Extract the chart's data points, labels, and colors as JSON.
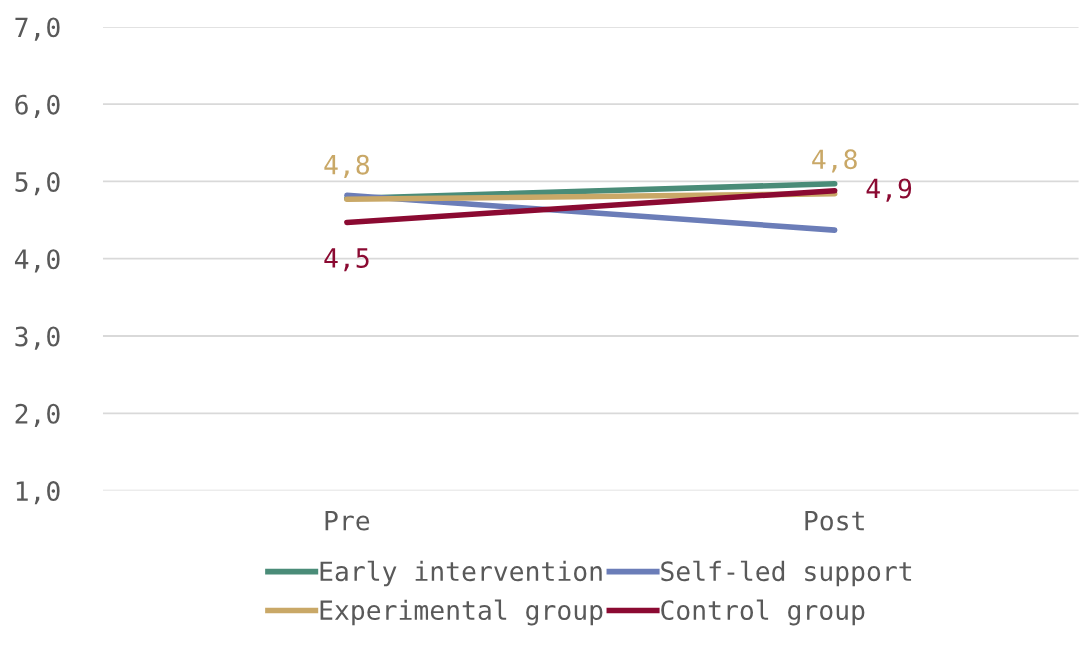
{
  "chart_data": {
    "type": "line",
    "categories": [
      "Pre",
      "Post"
    ],
    "series": [
      {
        "name": "Early intervention",
        "color": "#4a8c78",
        "values": [
          4.78,
          4.97
        ]
      },
      {
        "name": "Self-led support",
        "color": "#6b7db8",
        "values": [
          4.82,
          4.37
        ]
      },
      {
        "name": "Experimental group",
        "color": "#c9a867",
        "values": [
          4.77,
          4.84
        ],
        "value_labels": [
          "4,8",
          "4,8"
        ]
      },
      {
        "name": "Control group",
        "color": "#8b0a32",
        "values": [
          4.47,
          4.88
        ],
        "value_labels": [
          "4,5",
          "4,9"
        ]
      }
    ],
    "ylim": [
      1,
      7
    ],
    "yticks": [
      {
        "value": 1,
        "label": "1,0"
      },
      {
        "value": 2,
        "label": "2,0"
      },
      {
        "value": 3,
        "label": "3,0"
      },
      {
        "value": 4,
        "label": "4,0"
      },
      {
        "value": 5,
        "label": "5,0"
      },
      {
        "value": 6,
        "label": "6,0"
      },
      {
        "value": 7,
        "label": "7,0"
      }
    ],
    "grid": "y",
    "legend": "bottom",
    "marker": "none",
    "line_style": "solid"
  }
}
